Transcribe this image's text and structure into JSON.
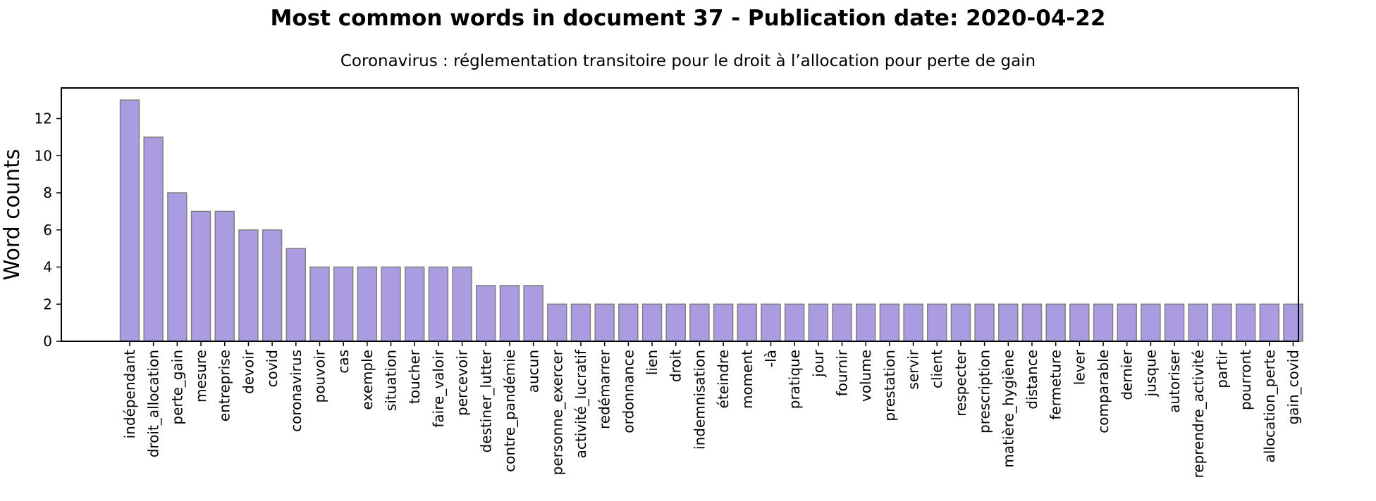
{
  "chart_data": {
    "type": "bar",
    "title": "Most common words in document 37 - Publication date: 2020-04-22",
    "subtitle": "Coronavirus : réglementation transitoire pour le droit à l’allocation pour perte de gain",
    "xlabel": "",
    "ylabel": "Word counts",
    "ylim": [
      0,
      13.65
    ],
    "yticks": [
      0,
      2,
      4,
      6,
      8,
      10,
      12
    ],
    "grid": false,
    "colors": {
      "bar_fill": "#ab9ce2",
      "bar_edge": "#7f7f7f",
      "axis": "#000000"
    },
    "categories": [
      "indépendant",
      "droit_allocation",
      "perte_gain",
      "mesure",
      "entreprise",
      "devoir",
      "covid",
      "coronavirus",
      "pouvoir",
      "cas",
      "exemple",
      "situation",
      "toucher",
      "faire_valoir",
      "percevoir",
      "destiner_lutter",
      "contre_pandémie",
      "aucun",
      "personne_exercer",
      "activité_lucratif",
      "redémarrer",
      "ordonnance",
      "lien",
      "droit",
      "indemnisation",
      "éteindre",
      "moment",
      "-là",
      "pratique",
      "jour",
      "fournir",
      "volume",
      "prestation",
      "servir",
      "client",
      "respecter",
      "prescription",
      "matière_hygiène",
      "distance",
      "fermeture",
      "lever",
      "comparable",
      "dernier",
      "jusque",
      "autoriser",
      "reprendre_activité",
      "partir",
      "pourront",
      "allocation_perte",
      "gain_covid"
    ],
    "values": [
      13,
      11,
      8,
      7,
      7,
      6,
      6,
      5,
      4,
      4,
      4,
      4,
      4,
      4,
      4,
      3,
      3,
      3,
      2,
      2,
      2,
      2,
      2,
      2,
      2,
      2,
      2,
      2,
      2,
      2,
      2,
      2,
      2,
      2,
      2,
      2,
      2,
      2,
      2,
      2,
      2,
      2,
      2,
      2,
      2,
      2,
      2,
      2,
      2,
      2
    ]
  }
}
